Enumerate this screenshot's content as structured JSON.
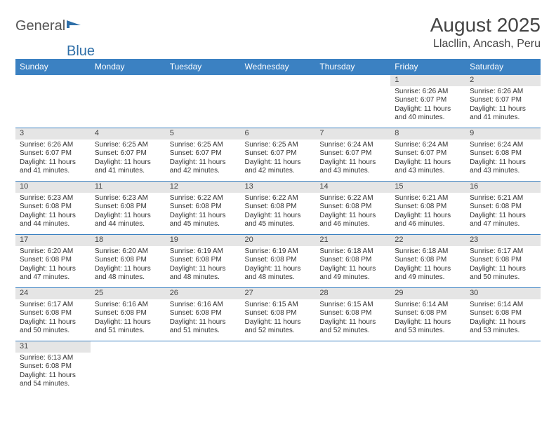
{
  "brand": {
    "part1": "General",
    "part2": "Blue"
  },
  "title": "August 2025",
  "location": "Llacllin, Ancash, Peru",
  "colors": {
    "header_bg": "#3b81c2",
    "header_text": "#ffffff",
    "daynum_bg": "#e5e5e5",
    "border": "#3b81c2",
    "text": "#333333",
    "logo_blue": "#2f6fa8"
  },
  "weekdays": [
    "Sunday",
    "Monday",
    "Tuesday",
    "Wednesday",
    "Thursday",
    "Friday",
    "Saturday"
  ],
  "weeks": [
    [
      null,
      null,
      null,
      null,
      null,
      {
        "n": "1",
        "sr": "Sunrise: 6:26 AM",
        "ss": "Sunset: 6:07 PM",
        "dl1": "Daylight: 11 hours",
        "dl2": "and 40 minutes."
      },
      {
        "n": "2",
        "sr": "Sunrise: 6:26 AM",
        "ss": "Sunset: 6:07 PM",
        "dl1": "Daylight: 11 hours",
        "dl2": "and 41 minutes."
      }
    ],
    [
      {
        "n": "3",
        "sr": "Sunrise: 6:26 AM",
        "ss": "Sunset: 6:07 PM",
        "dl1": "Daylight: 11 hours",
        "dl2": "and 41 minutes."
      },
      {
        "n": "4",
        "sr": "Sunrise: 6:25 AM",
        "ss": "Sunset: 6:07 PM",
        "dl1": "Daylight: 11 hours",
        "dl2": "and 41 minutes."
      },
      {
        "n": "5",
        "sr": "Sunrise: 6:25 AM",
        "ss": "Sunset: 6:07 PM",
        "dl1": "Daylight: 11 hours",
        "dl2": "and 42 minutes."
      },
      {
        "n": "6",
        "sr": "Sunrise: 6:25 AM",
        "ss": "Sunset: 6:07 PM",
        "dl1": "Daylight: 11 hours",
        "dl2": "and 42 minutes."
      },
      {
        "n": "7",
        "sr": "Sunrise: 6:24 AM",
        "ss": "Sunset: 6:07 PM",
        "dl1": "Daylight: 11 hours",
        "dl2": "and 43 minutes."
      },
      {
        "n": "8",
        "sr": "Sunrise: 6:24 AM",
        "ss": "Sunset: 6:07 PM",
        "dl1": "Daylight: 11 hours",
        "dl2": "and 43 minutes."
      },
      {
        "n": "9",
        "sr": "Sunrise: 6:24 AM",
        "ss": "Sunset: 6:08 PM",
        "dl1": "Daylight: 11 hours",
        "dl2": "and 43 minutes."
      }
    ],
    [
      {
        "n": "10",
        "sr": "Sunrise: 6:23 AM",
        "ss": "Sunset: 6:08 PM",
        "dl1": "Daylight: 11 hours",
        "dl2": "and 44 minutes."
      },
      {
        "n": "11",
        "sr": "Sunrise: 6:23 AM",
        "ss": "Sunset: 6:08 PM",
        "dl1": "Daylight: 11 hours",
        "dl2": "and 44 minutes."
      },
      {
        "n": "12",
        "sr": "Sunrise: 6:22 AM",
        "ss": "Sunset: 6:08 PM",
        "dl1": "Daylight: 11 hours",
        "dl2": "and 45 minutes."
      },
      {
        "n": "13",
        "sr": "Sunrise: 6:22 AM",
        "ss": "Sunset: 6:08 PM",
        "dl1": "Daylight: 11 hours",
        "dl2": "and 45 minutes."
      },
      {
        "n": "14",
        "sr": "Sunrise: 6:22 AM",
        "ss": "Sunset: 6:08 PM",
        "dl1": "Daylight: 11 hours",
        "dl2": "and 46 minutes."
      },
      {
        "n": "15",
        "sr": "Sunrise: 6:21 AM",
        "ss": "Sunset: 6:08 PM",
        "dl1": "Daylight: 11 hours",
        "dl2": "and 46 minutes."
      },
      {
        "n": "16",
        "sr": "Sunrise: 6:21 AM",
        "ss": "Sunset: 6:08 PM",
        "dl1": "Daylight: 11 hours",
        "dl2": "and 47 minutes."
      }
    ],
    [
      {
        "n": "17",
        "sr": "Sunrise: 6:20 AM",
        "ss": "Sunset: 6:08 PM",
        "dl1": "Daylight: 11 hours",
        "dl2": "and 47 minutes."
      },
      {
        "n": "18",
        "sr": "Sunrise: 6:20 AM",
        "ss": "Sunset: 6:08 PM",
        "dl1": "Daylight: 11 hours",
        "dl2": "and 48 minutes."
      },
      {
        "n": "19",
        "sr": "Sunrise: 6:19 AM",
        "ss": "Sunset: 6:08 PM",
        "dl1": "Daylight: 11 hours",
        "dl2": "and 48 minutes."
      },
      {
        "n": "20",
        "sr": "Sunrise: 6:19 AM",
        "ss": "Sunset: 6:08 PM",
        "dl1": "Daylight: 11 hours",
        "dl2": "and 48 minutes."
      },
      {
        "n": "21",
        "sr": "Sunrise: 6:18 AM",
        "ss": "Sunset: 6:08 PM",
        "dl1": "Daylight: 11 hours",
        "dl2": "and 49 minutes."
      },
      {
        "n": "22",
        "sr": "Sunrise: 6:18 AM",
        "ss": "Sunset: 6:08 PM",
        "dl1": "Daylight: 11 hours",
        "dl2": "and 49 minutes."
      },
      {
        "n": "23",
        "sr": "Sunrise: 6:17 AM",
        "ss": "Sunset: 6:08 PM",
        "dl1": "Daylight: 11 hours",
        "dl2": "and 50 minutes."
      }
    ],
    [
      {
        "n": "24",
        "sr": "Sunrise: 6:17 AM",
        "ss": "Sunset: 6:08 PM",
        "dl1": "Daylight: 11 hours",
        "dl2": "and 50 minutes."
      },
      {
        "n": "25",
        "sr": "Sunrise: 6:16 AM",
        "ss": "Sunset: 6:08 PM",
        "dl1": "Daylight: 11 hours",
        "dl2": "and 51 minutes."
      },
      {
        "n": "26",
        "sr": "Sunrise: 6:16 AM",
        "ss": "Sunset: 6:08 PM",
        "dl1": "Daylight: 11 hours",
        "dl2": "and 51 minutes."
      },
      {
        "n": "27",
        "sr": "Sunrise: 6:15 AM",
        "ss": "Sunset: 6:08 PM",
        "dl1": "Daylight: 11 hours",
        "dl2": "and 52 minutes."
      },
      {
        "n": "28",
        "sr": "Sunrise: 6:15 AM",
        "ss": "Sunset: 6:08 PM",
        "dl1": "Daylight: 11 hours",
        "dl2": "and 52 minutes."
      },
      {
        "n": "29",
        "sr": "Sunrise: 6:14 AM",
        "ss": "Sunset: 6:08 PM",
        "dl1": "Daylight: 11 hours",
        "dl2": "and 53 minutes."
      },
      {
        "n": "30",
        "sr": "Sunrise: 6:14 AM",
        "ss": "Sunset: 6:08 PM",
        "dl1": "Daylight: 11 hours",
        "dl2": "and 53 minutes."
      }
    ],
    [
      {
        "n": "31",
        "sr": "Sunrise: 6:13 AM",
        "ss": "Sunset: 6:08 PM",
        "dl1": "Daylight: 11 hours",
        "dl2": "and 54 minutes."
      },
      null,
      null,
      null,
      null,
      null,
      null
    ]
  ]
}
